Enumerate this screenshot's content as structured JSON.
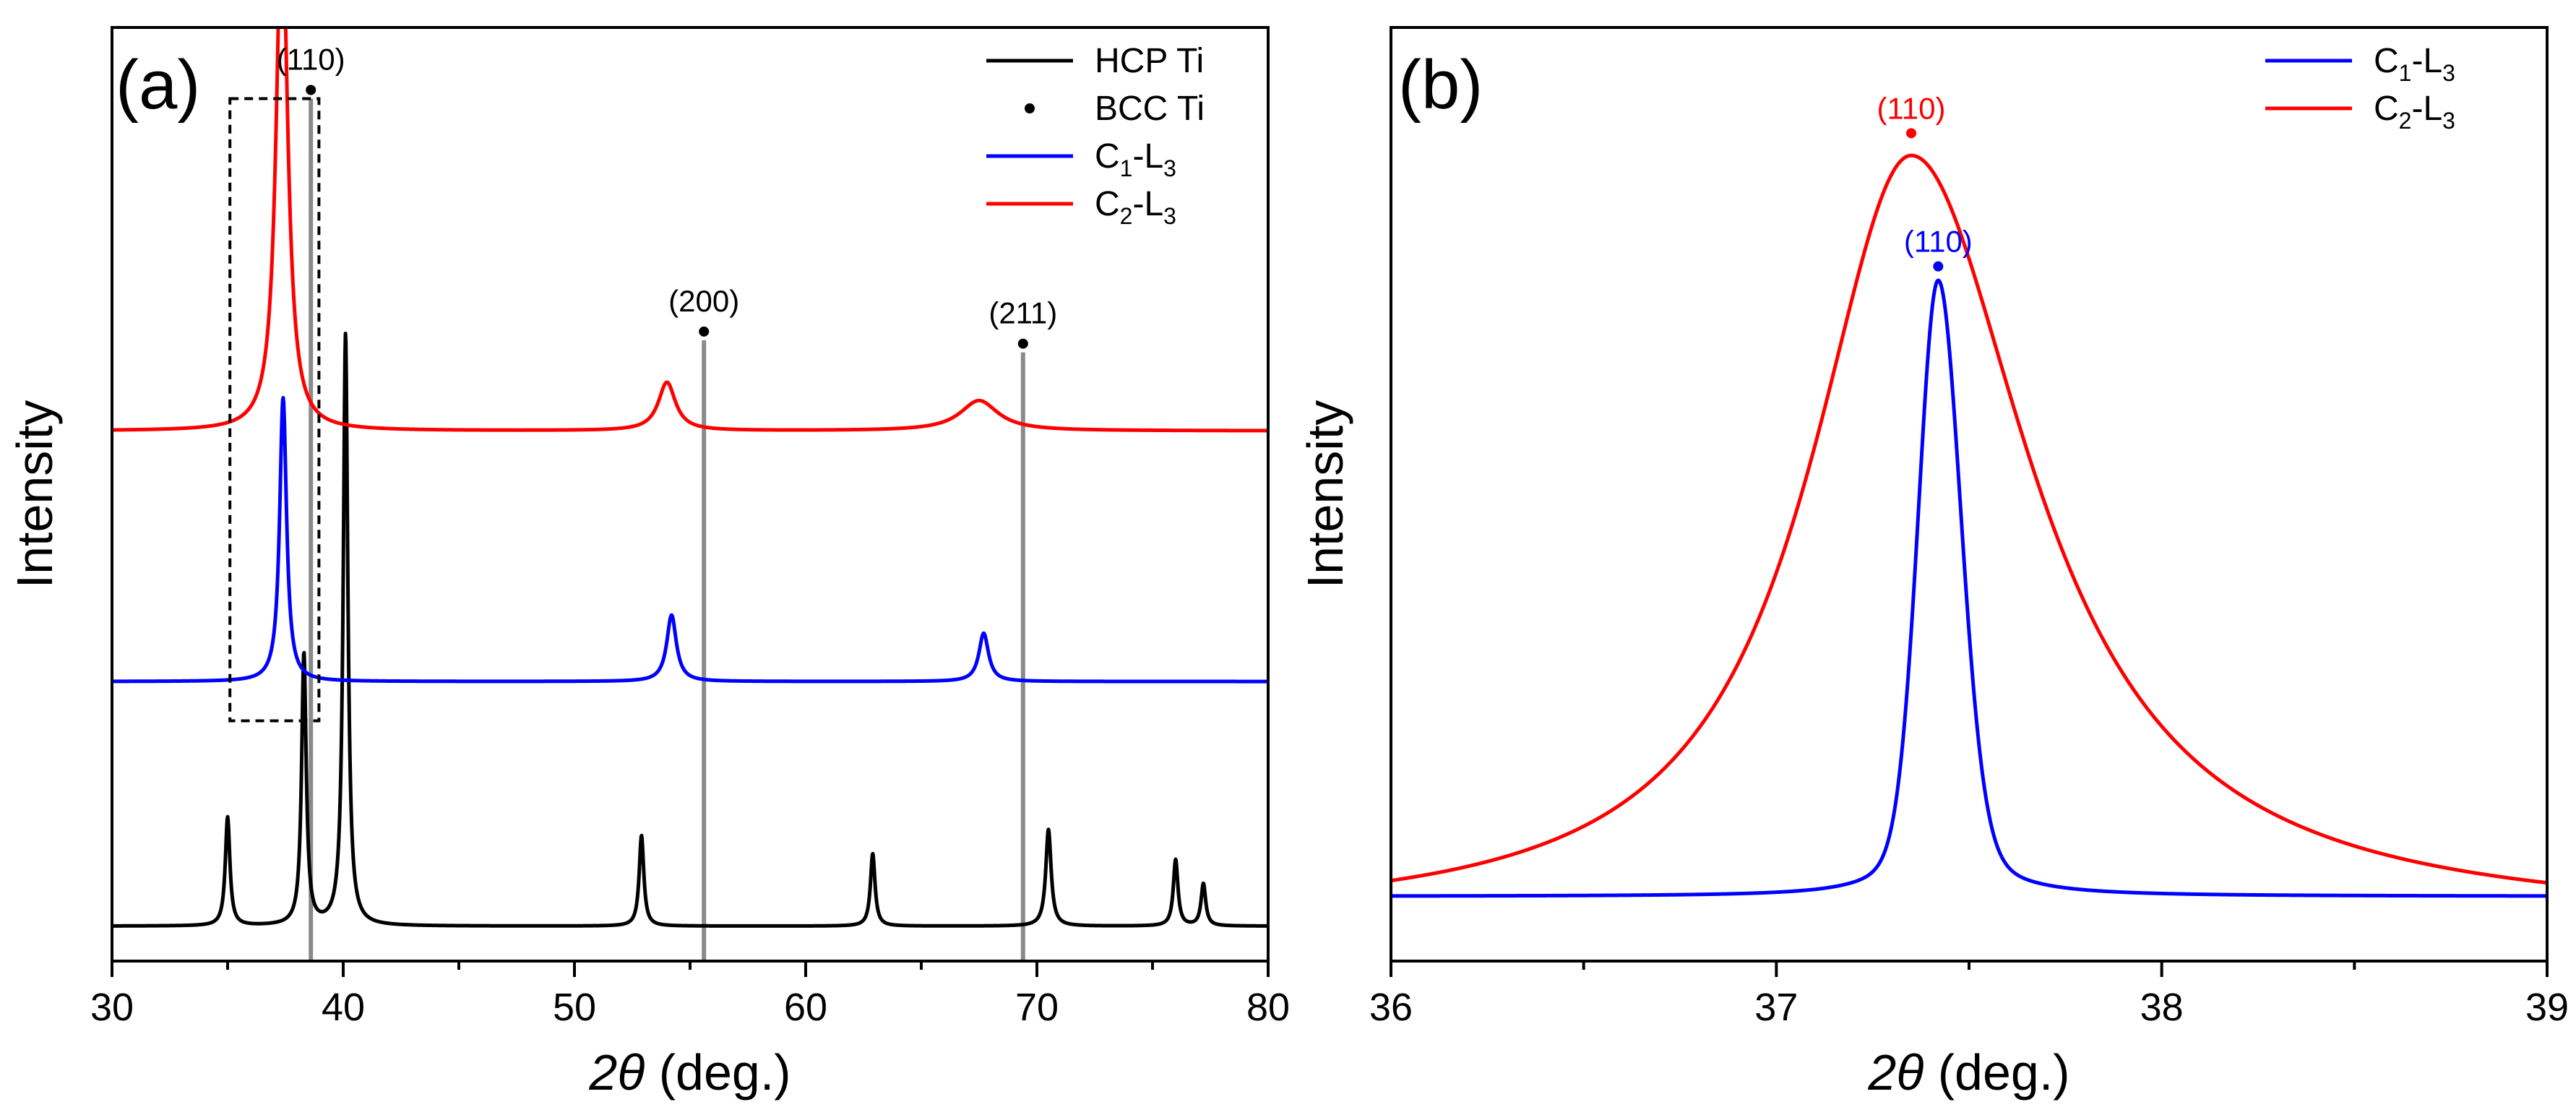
{
  "chart_data": [
    {
      "panel": "(a)",
      "type": "line",
      "xlabel": "2θ (deg.)",
      "xlabel_parts": {
        "italic": "2θ",
        "rest": " (deg.)"
      },
      "ylabel": "Intensity",
      "xlim": [
        30,
        80
      ],
      "ylim": [
        0,
        1
      ],
      "xticks": [
        30,
        40,
        50,
        60,
        70,
        80
      ],
      "grid": false,
      "legend_position": "top-right",
      "legend": [
        {
          "text": "HCP Ti",
          "main": "HCP Ti",
          "sub1": "",
          "mid": "",
          "sub2": "",
          "marker": "line",
          "color": "#000000"
        },
        {
          "text": "BCC Ti",
          "main": "BCC Ti",
          "sub1": "",
          "mid": "",
          "sub2": "",
          "marker": "dot",
          "color": "#000000"
        },
        {
          "text": "C1-L3",
          "main": "C",
          "sub1": "1",
          "mid": "-L",
          "sub2": "3",
          "marker": "line",
          "color": "#0000ff"
        },
        {
          "text": "C2-L3",
          "main": "C",
          "sub1": "2",
          "mid": "-L",
          "sub2": "3",
          "marker": "line",
          "color": "#ff0000"
        }
      ],
      "series": [
        {
          "name": "HCP Ti",
          "color": "#000000",
          "baseline": 0.01,
          "peaks": [
            {
              "x": 35.0,
              "h": 0.18,
              "w": 0.12
            },
            {
              "x": 38.3,
              "h": 0.45,
              "w": 0.12
            },
            {
              "x": 40.1,
              "h": 0.98,
              "w": 0.12
            },
            {
              "x": 52.9,
              "h": 0.15,
              "w": 0.12
            },
            {
              "x": 62.9,
              "h": 0.12,
              "w": 0.12
            },
            {
              "x": 70.5,
              "h": 0.16,
              "w": 0.14
            },
            {
              "x": 76.0,
              "h": 0.11,
              "w": 0.12
            },
            {
              "x": 77.2,
              "h": 0.07,
              "w": 0.12
            }
          ]
        },
        {
          "name": "C1-L3",
          "color": "#0000ff",
          "baseline": 0.415,
          "peaks": [
            {
              "x": 37.4,
              "h": 0.47,
              "w": 0.18
            },
            {
              "x": 54.2,
              "h": 0.11,
              "w": 0.25
            },
            {
              "x": 67.7,
              "h": 0.08,
              "w": 0.25
            }
          ]
        },
        {
          "name": "C2-L3",
          "color": "#ff0000",
          "baseline": 0.83,
          "peaks": [
            {
              "x": 37.35,
              "h": 0.86,
              "w": 0.3
            },
            {
              "x": 54.0,
              "h": 0.08,
              "w": 0.45
            },
            {
              "x": 67.5,
              "h": 0.05,
              "w": 1.0
            }
          ]
        }
      ],
      "reference_lines": [
        {
          "x": 38.6,
          "label": "(110)",
          "top": 1.38
        },
        {
          "x": 55.6,
          "label": "(200)",
          "top": 0.98
        },
        {
          "x": 69.4,
          "label": "(211)",
          "top": 0.96
        }
      ],
      "highlight_box": {
        "x": [
          35.1,
          38.95
        ],
        "y": [
          0.35,
          1.38
        ]
      }
    },
    {
      "panel": "(b)",
      "type": "line",
      "xlabel": "2θ (deg.)",
      "xlabel_parts": {
        "italic": "2θ",
        "rest": " (deg.)"
      },
      "ylabel": "Intensity",
      "xlim": [
        36,
        39
      ],
      "ylim": [
        0,
        1
      ],
      "xticks": [
        36,
        37,
        38,
        39
      ],
      "grid": false,
      "legend_position": "top-right",
      "legend": [
        {
          "text": "C1-L3",
          "main": "C",
          "sub1": "1",
          "mid": "-L",
          "sub2": "3",
          "marker": "line",
          "color": "#0000ff"
        },
        {
          "text": "C2-L3",
          "main": "C",
          "sub1": "2",
          "mid": "-L",
          "sub2": "3",
          "marker": "line",
          "color": "#ff0000"
        }
      ],
      "series": [
        {
          "name": "C1-L3",
          "color": "#0000ff",
          "baseline": 0.03,
          "peak_x": 37.42,
          "height": 0.74,
          "gamma_left": 0.07,
          "gamma_right": 0.08
        },
        {
          "name": "C2-L3",
          "color": "#ff0000",
          "baseline": 0.0,
          "peak_x": 37.35,
          "height": 0.92,
          "gamma_left": 0.32,
          "gamma_right": 0.38
        }
      ],
      "peak_labels": [
        {
          "label": "(110)",
          "x": 37.35,
          "y": 0.945,
          "color": "#ff0000"
        },
        {
          "label": "(110)",
          "x": 37.42,
          "y": 0.785,
          "color": "#0000ff"
        }
      ]
    }
  ]
}
